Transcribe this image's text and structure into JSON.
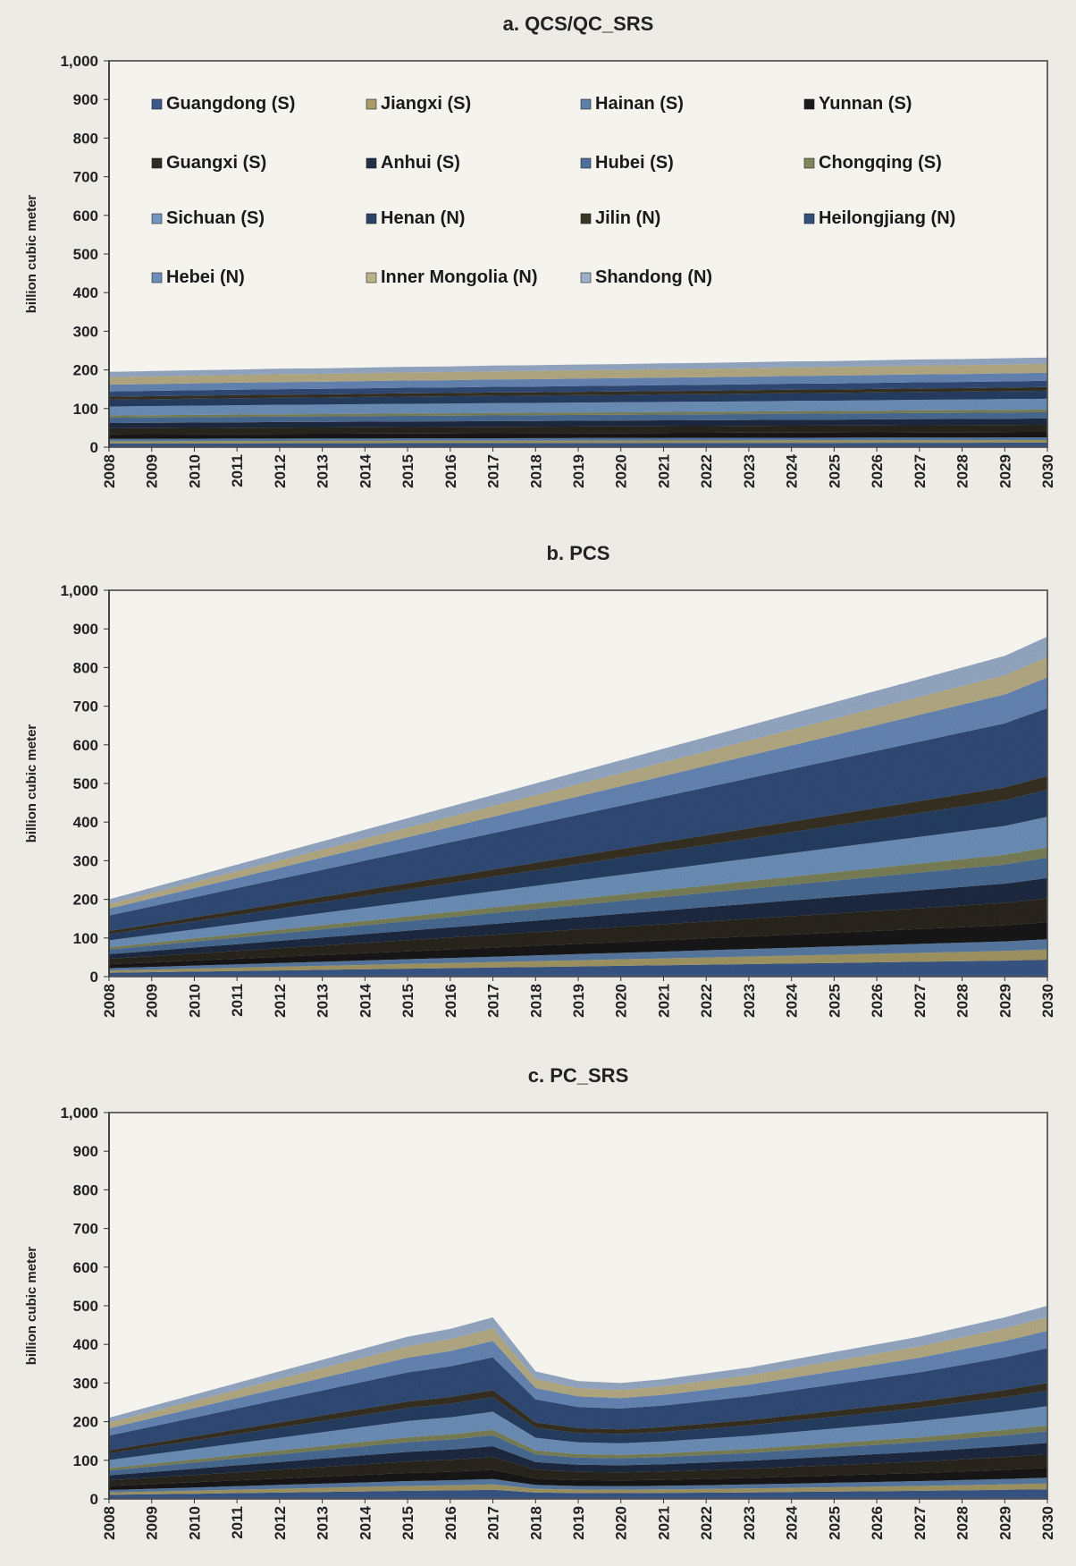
{
  "y_axis_label": "billion cubic meter",
  "colors": {
    "background": "#ecebe6",
    "axis": "#333333",
    "plot_border": "#555555",
    "title_color": "#222222",
    "tick_color": "#222222"
  },
  "legend": {
    "placement": "top-left inside panel a",
    "entries": [
      {
        "name": "Guangdong (S)",
        "color": "#3c5a8c"
      },
      {
        "name": "Jiangxi (S)",
        "color": "#a89c68"
      },
      {
        "name": "Hainan (S)",
        "color": "#5d7fa8"
      },
      {
        "name": "Yunnan (S)",
        "color": "#1a1a1a"
      },
      {
        "name": "Guangxi (S)",
        "color": "#2e2a22"
      },
      {
        "name": "Anhui (S)",
        "color": "#232f44"
      },
      {
        "name": "Hubei (S)",
        "color": "#4e6f9a"
      },
      {
        "name": "Chongqing (S)",
        "color": "#7f855c"
      },
      {
        "name": "Sichuan (S)",
        "color": "#7296c0"
      },
      {
        "name": "Henan (N)",
        "color": "#2b4266"
      },
      {
        "name": "Jilin (N)",
        "color": "#3a3626"
      },
      {
        "name": "Heilongjiang (N)",
        "color": "#34507c"
      },
      {
        "name": "Hebei (N)",
        "color": "#6c8cbc"
      },
      {
        "name": "Inner Mongolia (N)",
        "color": "#bcb28a"
      },
      {
        "name": "Shandong (N)",
        "color": "#9cb0cc"
      }
    ]
  },
  "chart_data": [
    {
      "id": "a",
      "type": "area",
      "stacked": true,
      "title": "a. QCS/QC_SRS",
      "xlabel": "",
      "ylabel": "billion cubic meter",
      "x": [
        "2008",
        "2009",
        "2010",
        "2011",
        "2012",
        "2013",
        "2014",
        "2015",
        "2016",
        "2017",
        "2018",
        "2019",
        "2020",
        "2021",
        "2022",
        "2023",
        "2024",
        "2025",
        "2026",
        "2027",
        "2028",
        "2029",
        "2030"
      ],
      "ylim": [
        0,
        1000
      ],
      "yticks": [
        "0",
        "100",
        "200",
        "300",
        "400",
        "500",
        "600",
        "700",
        "800",
        "900",
        "1,000"
      ],
      "grid": false,
      "total": [
        195,
        197,
        199,
        201,
        203,
        204,
        206,
        208,
        209,
        211,
        212,
        214,
        215,
        217,
        218,
        220,
        222,
        223,
        225,
        227,
        228,
        230,
        232
      ],
      "layers": [
        {
          "name": "Guangdong (S)",
          "share": 0.05
        },
        {
          "name": "Jiangxi (S)",
          "share": 0.03
        },
        {
          "name": "Hainan (S)",
          "share": 0.03
        },
        {
          "name": "Yunnan (S)",
          "share": 0.06
        },
        {
          "name": "Guangxi (S)",
          "share": 0.08
        },
        {
          "name": "Anhui (S)",
          "share": 0.07
        },
        {
          "name": "Hubei (S)",
          "share": 0.07
        },
        {
          "name": "Chongqing (S)",
          "share": 0.03
        },
        {
          "name": "Sichuan (S)",
          "share": 0.12
        },
        {
          "name": "Henan (N)",
          "share": 0.09
        },
        {
          "name": "Jilin (N)",
          "share": 0.04
        },
        {
          "name": "Heilongjiang (N)",
          "share": 0.07
        },
        {
          "name": "Hebei (N)",
          "share": 0.09
        },
        {
          "name": "Inner Mongolia (N)",
          "share": 0.1
        },
        {
          "name": "Shandong (N)",
          "share": 0.07
        }
      ]
    },
    {
      "id": "b",
      "type": "area",
      "stacked": true,
      "title": "b. PCS",
      "xlabel": "",
      "ylabel": "billion cubic meter",
      "x": [
        "2008",
        "2009",
        "2010",
        "2011",
        "2012",
        "2013",
        "2014",
        "2015",
        "2016",
        "2017",
        "2018",
        "2019",
        "2020",
        "2021",
        "2022",
        "2023",
        "2024",
        "2025",
        "2026",
        "2027",
        "2028",
        "2029",
        "2030"
      ],
      "ylim": [
        0,
        1000
      ],
      "yticks": [
        "0",
        "100",
        "200",
        "300",
        "400",
        "500",
        "600",
        "700",
        "800",
        "900",
        "1,000"
      ],
      "grid": false,
      "total": [
        200,
        230,
        260,
        290,
        320,
        350,
        380,
        410,
        440,
        470,
        500,
        530,
        560,
        590,
        620,
        650,
        680,
        710,
        740,
        770,
        800,
        830,
        880
      ],
      "layers": [
        {
          "name": "Guangdong (S)",
          "share": 0.05
        },
        {
          "name": "Jiangxi (S)",
          "share": 0.03
        },
        {
          "name": "Hainan (S)",
          "share": 0.03
        },
        {
          "name": "Yunnan (S)",
          "share": 0.05
        },
        {
          "name": "Guangxi (S)",
          "share": 0.07
        },
        {
          "name": "Anhui (S)",
          "share": 0.06
        },
        {
          "name": "Hubei (S)",
          "share": 0.06
        },
        {
          "name": "Chongqing (S)",
          "share": 0.03
        },
        {
          "name": "Sichuan (S)",
          "share": 0.09
        },
        {
          "name": "Henan (N)",
          "share": 0.08
        },
        {
          "name": "Jilin (N)",
          "share": 0.04
        },
        {
          "name": "Heilongjiang (N)",
          "share": 0.2
        },
        {
          "name": "Hebei (N)",
          "share": 0.09
        },
        {
          "name": "Inner Mongolia (N)",
          "share": 0.06
        },
        {
          "name": "Shandong (N)",
          "share": 0.06
        }
      ]
    },
    {
      "id": "c",
      "type": "area",
      "stacked": true,
      "title": "c. PC_SRS",
      "xlabel": "",
      "ylabel": "billion cubic meter",
      "x": [
        "2008",
        "2009",
        "2010",
        "2011",
        "2012",
        "2013",
        "2014",
        "2015",
        "2016",
        "2017",
        "2018",
        "2019",
        "2020",
        "2021",
        "2022",
        "2023",
        "2024",
        "2025",
        "2026",
        "2027",
        "2028",
        "2029",
        "2030"
      ],
      "ylim": [
        0,
        1000
      ],
      "yticks": [
        "0",
        "100",
        "200",
        "300",
        "400",
        "500",
        "600",
        "700",
        "800",
        "900",
        "1,000"
      ],
      "grid": false,
      "total": [
        210,
        240,
        270,
        300,
        330,
        360,
        390,
        420,
        440,
        470,
        330,
        305,
        300,
        310,
        325,
        340,
        360,
        380,
        400,
        420,
        445,
        470,
        500
      ],
      "layers": [
        {
          "name": "Guangdong (S)",
          "share": 0.05
        },
        {
          "name": "Jiangxi (S)",
          "share": 0.03
        },
        {
          "name": "Hainan (S)",
          "share": 0.03
        },
        {
          "name": "Yunnan (S)",
          "share": 0.05
        },
        {
          "name": "Guangxi (S)",
          "share": 0.07
        },
        {
          "name": "Anhui (S)",
          "share": 0.06
        },
        {
          "name": "Hubei (S)",
          "share": 0.06
        },
        {
          "name": "Chongqing (S)",
          "share": 0.03
        },
        {
          "name": "Sichuan (S)",
          "share": 0.1
        },
        {
          "name": "Henan (N)",
          "share": 0.08
        },
        {
          "name": "Jilin (N)",
          "share": 0.04
        },
        {
          "name": "Heilongjiang (N)",
          "share": 0.18
        },
        {
          "name": "Hebei (N)",
          "share": 0.09
        },
        {
          "name": "Inner Mongolia (N)",
          "share": 0.07
        },
        {
          "name": "Shandong (N)",
          "share": 0.06
        }
      ]
    }
  ]
}
